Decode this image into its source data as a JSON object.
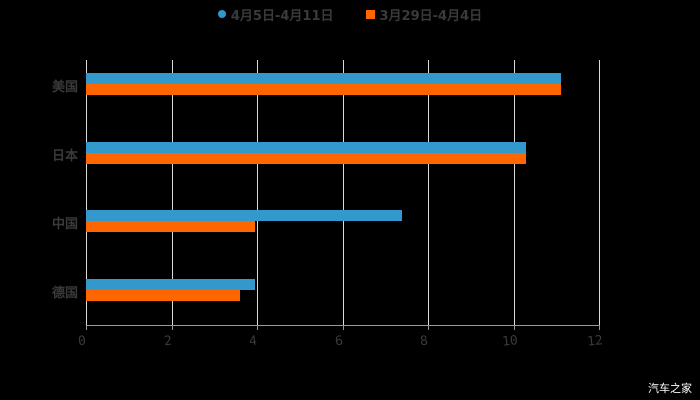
{
  "chart_data": {
    "type": "bar",
    "orientation": "horizontal",
    "title": "",
    "xlabel": "",
    "ylabel": "",
    "categories": [
      "美国",
      "日本",
      "中国",
      "德国"
    ],
    "series": [
      {
        "name": "4月5日-4月11日",
        "color": "#3399cc",
        "values": [
          11.1,
          10.3,
          7.4,
          3.95
        ]
      },
      {
        "name": "3月29日-4月4日",
        "color": "#ff6600",
        "values": [
          11.1,
          10.3,
          3.95,
          3.6
        ]
      }
    ],
    "xlim": [
      0,
      12
    ],
    "xticks": [
      "0",
      "2",
      "4",
      "6",
      "8",
      "10",
      "12"
    ],
    "grid": true,
    "legend_position": "top"
  },
  "legend": {
    "items": [
      {
        "label": "4月5日-4月11日",
        "color": "#3399cc",
        "marker": "circle"
      },
      {
        "label": "3月29日-4月4日",
        "color": "#ff6600",
        "marker": "square"
      }
    ]
  },
  "watermark": "汽车之家"
}
